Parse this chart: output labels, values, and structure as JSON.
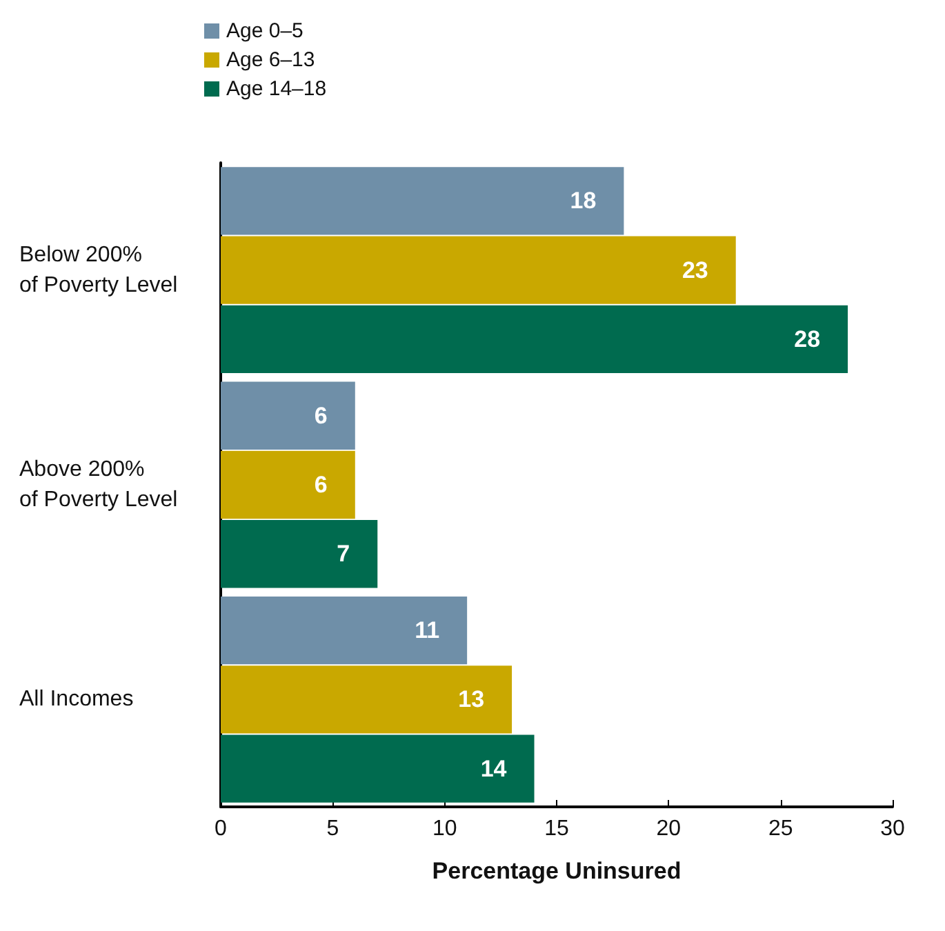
{
  "chart_data": {
    "type": "bar",
    "orientation": "horizontal",
    "categories": [
      "Below 200%\nof Poverty Level",
      "Above 200%\nof Poverty Level",
      "All Incomes"
    ],
    "series": [
      {
        "name": "Age 0–5",
        "color": "#6f8fa8",
        "values": [
          18,
          6,
          11
        ]
      },
      {
        "name": "Age 6–13",
        "color": "#c9a800",
        "values": [
          23,
          6,
          13
        ]
      },
      {
        "name": "Age 14–18",
        "color": "#006b4f",
        "values": [
          28,
          7,
          14
        ]
      }
    ],
    "xlabel": "Percentage Uninsured",
    "xlim": [
      0,
      30
    ],
    "xticks": [
      0,
      5,
      10,
      15,
      20,
      25,
      30
    ],
    "data_labels": true,
    "legend": "top left",
    "grid": false
  }
}
